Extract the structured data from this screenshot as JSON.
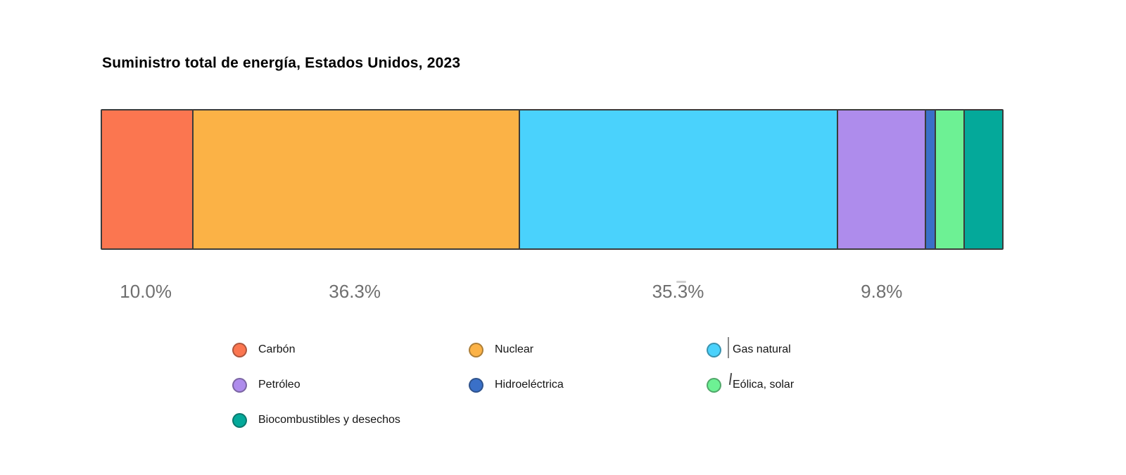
{
  "title": "Suministro total de energía, Estados Unidos, 2023",
  "chart_data": {
    "type": "bar",
    "subtype": "stacked-horizontal-single-bar",
    "title": "Suministro total de energía, Estados Unidos, 2023",
    "unit": "%",
    "total": 100.0,
    "axis": "none",
    "grid": false,
    "legend_position": "bottom",
    "legend_columns": 3,
    "segments": [
      {
        "label": "Carbón",
        "value": 10.0,
        "display_label": "10.0%",
        "color": "#FB7650"
      },
      {
        "label": "Nuclear",
        "value": 36.3,
        "display_label": "36.3%",
        "color": "#FBB246"
      },
      {
        "label": "Gas natural",
        "value": 35.3,
        "display_label": "35.3%",
        "color": "#4AD2FC"
      },
      {
        "label": "Petróleo",
        "value": 9.8,
        "display_label": "9.8%",
        "color": "#AE8CEC"
      },
      {
        "label": "Hidroeléctrica",
        "value": 1.1,
        "display_label": "",
        "color": "#3A70C8"
      },
      {
        "label": "Eólica, solar",
        "value": 3.2,
        "display_label": "",
        "color": "#6DF194"
      },
      {
        "label": "Biocombustibles y desechos",
        "value": 4.3,
        "display_label": "",
        "color": "#04A99A"
      }
    ]
  },
  "style": {
    "background": "#FFFFFF",
    "title_color": "#000000",
    "bar_border_color": "#3B3B3B",
    "percent_label_color": "#6F6F6F",
    "legend_text_color": "#151515"
  }
}
